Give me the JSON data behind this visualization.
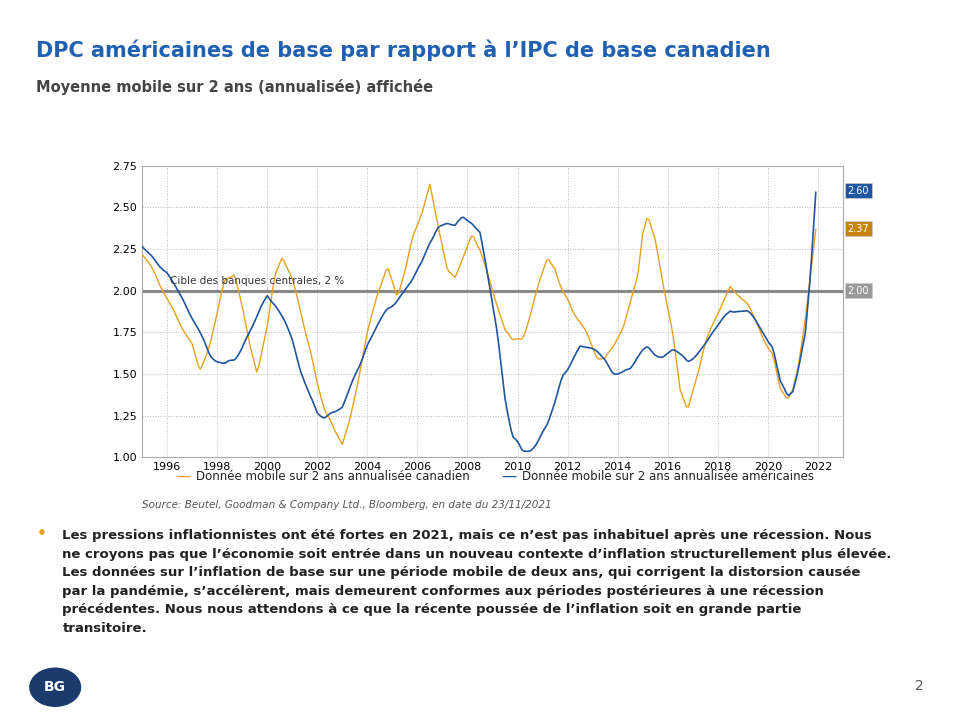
{
  "title": "DPC américaines de base par rapport à l’IPC de base canadien",
  "subtitle": "Moyenne mobile sur 2 ans (annualisée) affichée",
  "source": "Source: Beutel, Goodman & Company Ltd., Bloomberg, en date du 23/11/2021",
  "legend_canadian": "Donnée mobile sur 2 ans annualisée canadien",
  "legend_us": "Donnée mobile sur 2 ans annualisée américaines",
  "central_bank_label": "Cible des banques centrales, 2 %",
  "body_text": "Les pressions inflationnistes ont été fortes en 2021, mais ce n’est pas inhabituel après une récession. Nous ne croyons pas que l’économie soit entrée dans un nouveau contexte d’inflation structurellement plus élevée. Les données sur l’inflation de base sur une période mobile de deux ans, qui corrigent la distorsion causée par la pandémie, s’accélèrent, mais demeurent conformes aux périodes postérieures à une récession précédentes. Nous nous attendons à ce que la récente poussée de l’inflation soit en grande partie transitoire.",
  "ylim": [
    1.0,
    2.75
  ],
  "yticks": [
    1.0,
    1.25,
    1.5,
    1.75,
    2.0,
    2.25,
    2.5,
    2.75
  ],
  "color_canadian": "#E8A020",
  "color_us": "#2055A0",
  "color_central_bank": "#888888",
  "color_title": "#2060B0",
  "color_subtitle": "#555555",
  "end_label_us": "2.60",
  "end_label_ca": "2.37",
  "end_label_cb": "2.00",
  "top_bar_color": "#1A3A6B",
  "bottom_bar_color": "#1A3A6B",
  "bg_color": "#FFFFFF",
  "page_number": "2",
  "ca_keypoints": [
    [
      1995.0,
      2.22
    ],
    [
      1995.5,
      2.1
    ],
    [
      1996.0,
      1.95
    ],
    [
      1996.5,
      1.8
    ],
    [
      1997.0,
      1.65
    ],
    [
      1997.3,
      1.5
    ],
    [
      1997.7,
      1.68
    ],
    [
      1998.0,
      1.85
    ],
    [
      1998.3,
      2.05
    ],
    [
      1998.7,
      2.1
    ],
    [
      1999.0,
      1.9
    ],
    [
      1999.3,
      1.68
    ],
    [
      1999.6,
      1.52
    ],
    [
      2000.0,
      1.8
    ],
    [
      2000.3,
      2.1
    ],
    [
      2000.6,
      2.2
    ],
    [
      2001.0,
      2.05
    ],
    [
      2001.3,
      1.88
    ],
    [
      2001.7,
      1.65
    ],
    [
      2002.0,
      1.45
    ],
    [
      2002.3,
      1.28
    ],
    [
      2002.7,
      1.15
    ],
    [
      2003.0,
      1.08
    ],
    [
      2003.3,
      1.22
    ],
    [
      2003.7,
      1.5
    ],
    [
      2004.0,
      1.72
    ],
    [
      2004.4,
      2.0
    ],
    [
      2004.8,
      2.15
    ],
    [
      2005.2,
      1.95
    ],
    [
      2005.5,
      2.1
    ],
    [
      2005.8,
      2.3
    ],
    [
      2006.2,
      2.45
    ],
    [
      2006.5,
      2.62
    ],
    [
      2006.8,
      2.4
    ],
    [
      2007.2,
      2.1
    ],
    [
      2007.5,
      2.08
    ],
    [
      2007.8,
      2.2
    ],
    [
      2008.2,
      2.35
    ],
    [
      2008.5,
      2.25
    ],
    [
      2008.8,
      2.1
    ],
    [
      2009.2,
      1.9
    ],
    [
      2009.5,
      1.75
    ],
    [
      2009.8,
      1.68
    ],
    [
      2010.2,
      1.72
    ],
    [
      2010.5,
      1.85
    ],
    [
      2010.8,
      2.0
    ],
    [
      2011.2,
      2.2
    ],
    [
      2011.5,
      2.15
    ],
    [
      2011.8,
      2.0
    ],
    [
      2012.2,
      1.85
    ],
    [
      2012.5,
      1.78
    ],
    [
      2012.8,
      1.72
    ],
    [
      2013.2,
      1.6
    ],
    [
      2013.5,
      1.58
    ],
    [
      2013.8,
      1.65
    ],
    [
      2014.2,
      1.8
    ],
    [
      2014.5,
      1.95
    ],
    [
      2014.8,
      2.1
    ],
    [
      2015.0,
      2.35
    ],
    [
      2015.2,
      2.45
    ],
    [
      2015.5,
      2.3
    ],
    [
      2015.8,
      2.05
    ],
    [
      2016.2,
      1.75
    ],
    [
      2016.5,
      1.42
    ],
    [
      2016.8,
      1.28
    ],
    [
      2017.2,
      1.5
    ],
    [
      2017.5,
      1.68
    ],
    [
      2017.8,
      1.8
    ],
    [
      2018.2,
      1.95
    ],
    [
      2018.5,
      2.05
    ],
    [
      2018.8,
      2.0
    ],
    [
      2019.2,
      1.92
    ],
    [
      2019.5,
      1.82
    ],
    [
      2019.8,
      1.72
    ],
    [
      2020.2,
      1.62
    ],
    [
      2020.5,
      1.4
    ],
    [
      2020.8,
      1.32
    ],
    [
      2021.0,
      1.38
    ],
    [
      2021.2,
      1.52
    ],
    [
      2021.5,
      1.85
    ],
    [
      2021.7,
      2.1
    ],
    [
      2021.917,
      2.37
    ]
  ],
  "us_keypoints": [
    [
      1995.0,
      2.3
    ],
    [
      1995.3,
      2.22
    ],
    [
      1995.7,
      2.15
    ],
    [
      1996.0,
      2.1
    ],
    [
      1996.3,
      2.02
    ],
    [
      1996.7,
      1.92
    ],
    [
      1997.0,
      1.82
    ],
    [
      1997.3,
      1.72
    ],
    [
      1997.7,
      1.62
    ],
    [
      1998.0,
      1.58
    ],
    [
      1998.3,
      1.55
    ],
    [
      1998.7,
      1.6
    ],
    [
      1999.0,
      1.68
    ],
    [
      1999.3,
      1.78
    ],
    [
      1999.7,
      1.9
    ],
    [
      2000.0,
      1.98
    ],
    [
      2000.3,
      1.92
    ],
    [
      2000.7,
      1.8
    ],
    [
      2001.0,
      1.68
    ],
    [
      2001.3,
      1.52
    ],
    [
      2001.7,
      1.38
    ],
    [
      2002.0,
      1.28
    ],
    [
      2002.3,
      1.25
    ],
    [
      2002.7,
      1.28
    ],
    [
      2003.0,
      1.32
    ],
    [
      2003.3,
      1.42
    ],
    [
      2003.7,
      1.55
    ],
    [
      2004.0,
      1.68
    ],
    [
      2004.4,
      1.8
    ],
    [
      2004.8,
      1.9
    ],
    [
      2005.2,
      1.95
    ],
    [
      2005.5,
      2.0
    ],
    [
      2005.8,
      2.05
    ],
    [
      2006.2,
      2.15
    ],
    [
      2006.5,
      2.28
    ],
    [
      2006.8,
      2.38
    ],
    [
      2007.2,
      2.42
    ],
    [
      2007.5,
      2.4
    ],
    [
      2007.8,
      2.45
    ],
    [
      2008.2,
      2.42
    ],
    [
      2008.5,
      2.35
    ],
    [
      2008.8,
      2.1
    ],
    [
      2009.2,
      1.75
    ],
    [
      2009.5,
      1.38
    ],
    [
      2009.8,
      1.12
    ],
    [
      2010.2,
      1.02
    ],
    [
      2010.5,
      1.05
    ],
    [
      2010.8,
      1.1
    ],
    [
      2011.2,
      1.2
    ],
    [
      2011.5,
      1.35
    ],
    [
      2011.8,
      1.52
    ],
    [
      2012.2,
      1.62
    ],
    [
      2012.5,
      1.68
    ],
    [
      2012.8,
      1.65
    ],
    [
      2013.2,
      1.62
    ],
    [
      2013.5,
      1.58
    ],
    [
      2013.8,
      1.52
    ],
    [
      2014.2,
      1.5
    ],
    [
      2014.5,
      1.52
    ],
    [
      2014.8,
      1.58
    ],
    [
      2015.0,
      1.62
    ],
    [
      2015.2,
      1.65
    ],
    [
      2015.5,
      1.62
    ],
    [
      2015.8,
      1.6
    ],
    [
      2016.2,
      1.62
    ],
    [
      2016.5,
      1.58
    ],
    [
      2016.8,
      1.55
    ],
    [
      2017.2,
      1.62
    ],
    [
      2017.5,
      1.68
    ],
    [
      2017.8,
      1.75
    ],
    [
      2018.2,
      1.82
    ],
    [
      2018.5,
      1.88
    ],
    [
      2018.8,
      1.88
    ],
    [
      2019.2,
      1.85
    ],
    [
      2019.5,
      1.8
    ],
    [
      2019.8,
      1.75
    ],
    [
      2020.2,
      1.68
    ],
    [
      2020.5,
      1.45
    ],
    [
      2020.8,
      1.35
    ],
    [
      2021.0,
      1.38
    ],
    [
      2021.2,
      1.5
    ],
    [
      2021.5,
      1.75
    ],
    [
      2021.7,
      2.1
    ],
    [
      2021.917,
      2.6
    ]
  ]
}
